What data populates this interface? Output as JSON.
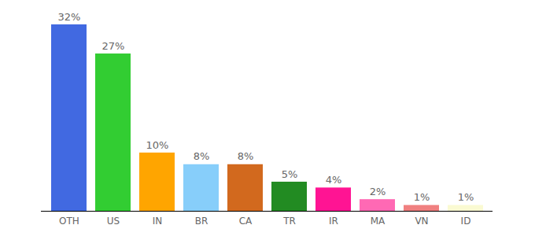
{
  "chart_data": {
    "type": "bar",
    "categories": [
      "OTH",
      "US",
      "IN",
      "BR",
      "CA",
      "TR",
      "IR",
      "MA",
      "VN",
      "ID"
    ],
    "values": [
      32,
      27,
      10,
      8,
      8,
      5,
      4,
      2,
      1,
      1
    ],
    "value_labels": [
      "32%",
      "27%",
      "10%",
      "8%",
      "8%",
      "5%",
      "4%",
      "2%",
      "1%",
      "1%"
    ],
    "colors": [
      "#4169e1",
      "#32cd32",
      "#ffa500",
      "#87cefa",
      "#d2691e",
      "#228b22",
      "#ff1493",
      "#ff69b4",
      "#f08080",
      "#fafad2"
    ],
    "ylim": [
      0,
      32
    ],
    "data_labels": true,
    "tick_labels": "x",
    "grid": false
  }
}
